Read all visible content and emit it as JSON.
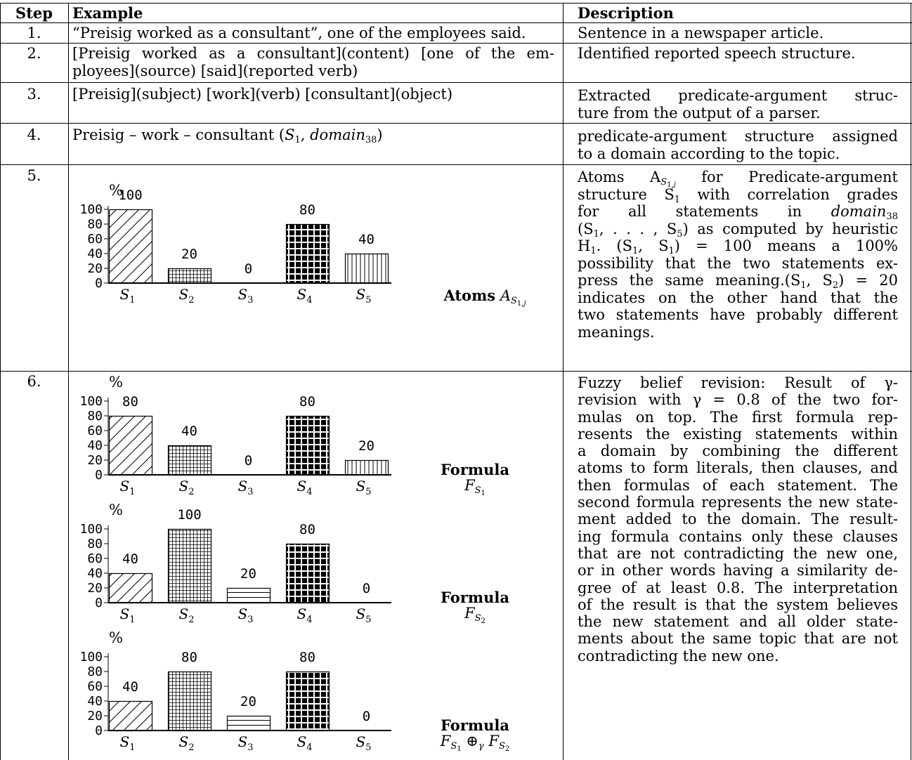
{
  "header": {
    "step": "Step",
    "example": "Example",
    "description": "Description"
  },
  "rows": [
    {
      "step": "1.",
      "example": [
        "“Preisig worked as a consultant”, one of the employees said."
      ],
      "description": [
        "Sentence in a newspaper article."
      ]
    },
    {
      "step": "2.",
      "example": [
        "[Preisig worked as a consultant](content) [one of the em-",
        "ployees](source) [said](reported verb)"
      ],
      "description": [
        "Identified reported speech structure."
      ]
    },
    {
      "step": "3.",
      "example": [
        "[Preisig](subject) [work](verb) [consultant](object)"
      ],
      "description": [
        "Extracted predicate-argument struc-",
        "ture from the output of a parser."
      ]
    },
    {
      "step": "4.",
      "example": [
        "Preisig – work – consultant ("
      ],
      "example_math": {
        "s": "S",
        "s_sub": "1",
        "domain": "domain",
        "domain_sub": "38",
        "close": ")"
      },
      "description": [
        "predicate-argument structure assigned",
        "to a domain according to the topic."
      ]
    },
    {
      "step": "5.",
      "description": [
        "Atoms A",
        "for Predicate-argument",
        "structure S",
        "with correlation grades",
        "for all statements in",
        "(S",
        ", . . . , S",
        ") as computed by heuristic",
        "H",
        ".  (S",
        ", S",
        ") = 100 means a 100%",
        "possibility that the two statements ex-",
        "press the same meaning.(S",
        ", S",
        ") = 20",
        "indicates on the other hand that the",
        "two statements have probably different",
        "meanings."
      ]
    },
    {
      "step": "6.",
      "description": [
        "Fuzzy belief revision:  Result of γ-",
        "revision with γ = 0.8 of the two for-",
        "mulas on top.  The first formula rep-",
        "resents the existing statements within",
        "a domain by combining the different",
        "atoms to form literals, then clauses, and",
        "then formulas of each statement.  The",
        "second formula represents the new state-",
        "ment added to the domain.  The result-",
        "ing formula contains only these clauses",
        "that are not contradicting the new one,",
        "or in other words having a similarity de-",
        "gree of at least 0.8.  The interpretation",
        "of the result is that the system believes",
        "the new statement and all older state-",
        "ments about the same topic that are not",
        "contradicting the new one."
      ]
    }
  ],
  "chart_data": [
    {
      "type": "bar",
      "title": "",
      "ylabel": "%",
      "ylim": [
        0,
        100
      ],
      "yticks": [
        "100",
        "80",
        "60",
        "40",
        "20",
        "0"
      ],
      "categories": [
        "S1",
        "S2",
        "S3",
        "S4",
        "S5"
      ],
      "values": [
        100,
        20,
        0,
        80,
        40
      ],
      "caption_bold": "Atoms",
      "caption_math": "A",
      "caption_sub": "S",
      "caption_subsub": "1",
      "caption_subtail": ",j",
      "fills": [
        "hatch-diagonal",
        "grid-fine",
        "horizontal-lines",
        "checker-black",
        "vertical-lines"
      ]
    },
    {
      "type": "bar",
      "title": "",
      "ylabel": "%",
      "ylim": [
        0,
        100
      ],
      "yticks": [
        "100",
        "80",
        "60",
        "40",
        "20",
        "0"
      ],
      "categories": [
        "S1",
        "S2",
        "S3",
        "S4",
        "S5"
      ],
      "values": [
        80,
        40,
        0,
        80,
        20
      ],
      "caption_bold": "Formula",
      "caption_math": "F",
      "caption_sub": "S",
      "caption_subsub": "1",
      "fills": [
        "hatch-diagonal",
        "grid-fine",
        "horizontal-lines",
        "checker-black",
        "vertical-lines"
      ]
    },
    {
      "type": "bar",
      "title": "",
      "ylabel": "%",
      "ylim": [
        0,
        100
      ],
      "yticks": [
        "100",
        "80",
        "60",
        "40",
        "20",
        "0"
      ],
      "categories": [
        "S1",
        "S2",
        "S3",
        "S4",
        "S5"
      ],
      "values": [
        40,
        100,
        20,
        80,
        0
      ],
      "caption_bold": "Formula",
      "caption_math": "F",
      "caption_sub": "S",
      "caption_subsub": "2",
      "fills": [
        "hatch-diagonal",
        "grid-fine",
        "horizontal-lines",
        "checker-black",
        "vertical-lines"
      ]
    },
    {
      "type": "bar",
      "title": "",
      "ylabel": "%",
      "ylim": [
        0,
        100
      ],
      "yticks": [
        "100",
        "80",
        "60",
        "40",
        "20",
        "0"
      ],
      "categories": [
        "S1",
        "S2",
        "S3",
        "S4",
        "S5"
      ],
      "values": [
        40,
        80,
        20,
        80,
        0
      ],
      "caption_bold": "Formula",
      "caption_math": "F",
      "caption_sub": "S",
      "caption_subsub": "1",
      "caption_op": "⊕",
      "caption_op_sub": "γ",
      "caption_math2": "F",
      "caption_sub2": "S",
      "caption_subsub2": "2",
      "fills": [
        "hatch-diagonal",
        "grid-fine",
        "horizontal-lines",
        "checker-black",
        "vertical-lines"
      ]
    }
  ]
}
